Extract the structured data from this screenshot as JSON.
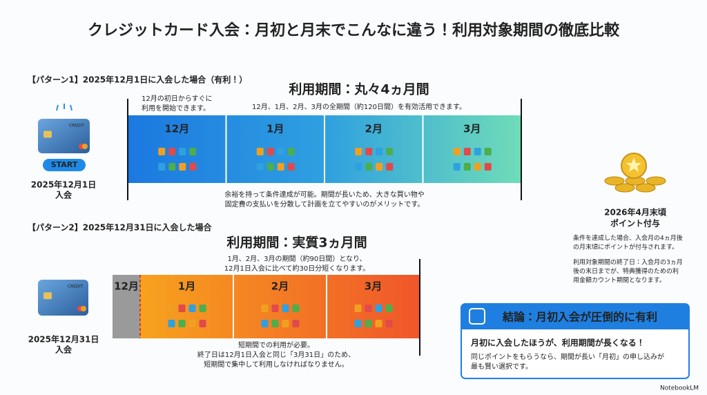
{
  "title": "クレジットカード入会：月初と月末でこんなに違う！利用対象期間の徹底比較",
  "pattern1": {
    "heading": "【パターン1】2025年12月1日に入会した場合（有利！）",
    "card_label": "CREDIT",
    "button": "START",
    "join_date": "2025年12月1日",
    "join_label": "入会",
    "start_note": [
      "12月の初日からすぐに",
      "利用を開始できます。"
    ],
    "period_title": "利用期間：丸々4ヵ月間",
    "period_desc": "12月、1月、2月、3月の全期間（約120日間）を有効活用できます。",
    "months": [
      "12月",
      "1月",
      "2月",
      "3月"
    ],
    "note": [
      "余裕を持って条件達成が可能。期間が長いため、大きな買い物や",
      "固定費の支払いを分散して計画を立てやすいのがメリットです。"
    ]
  },
  "pattern2": {
    "heading": "【パターン2】2025年12月31日に入会した場合",
    "card_label": "CREDIT",
    "join_date": "2025年12月31日",
    "join_label": "入会",
    "period_title": "利用期間：実質3ヵ月間",
    "period_desc": [
      "1月、2月、3月の期間（約90日間）となり、",
      "12月1日入会に比べて約30日分短くなります。"
    ],
    "months": [
      "12月",
      "1月",
      "2月",
      "3月"
    ],
    "note": [
      "短期間での利用が必要。",
      "終了日は12月1日入会と同じ「3月31日」のため、",
      "短期間で集中して利用しなければなりません。"
    ]
  },
  "reward": {
    "title": [
      "2026年4月末頃",
      "ポイント付与"
    ],
    "desc1": [
      "条件を達成した場合、入会月の4ヵ月後",
      "の月末頃にポイントが付与されます。"
    ],
    "desc2": [
      "利用対象期間の終了日：入会月の3ヵ月",
      "後の末日までが、特典獲得のための利",
      "用金額カウント期間となります。"
    ]
  },
  "conclusion": {
    "title": "結論：月初入会が圧倒的に有利",
    "main": "月初に入会したほうが、利用期間が長くなる！",
    "sub": [
      "同じポイントをもらうなら、期間が長い「月初」の申し込みが",
      "最も賢い選択です。"
    ]
  },
  "footer": "NotebookLM"
}
